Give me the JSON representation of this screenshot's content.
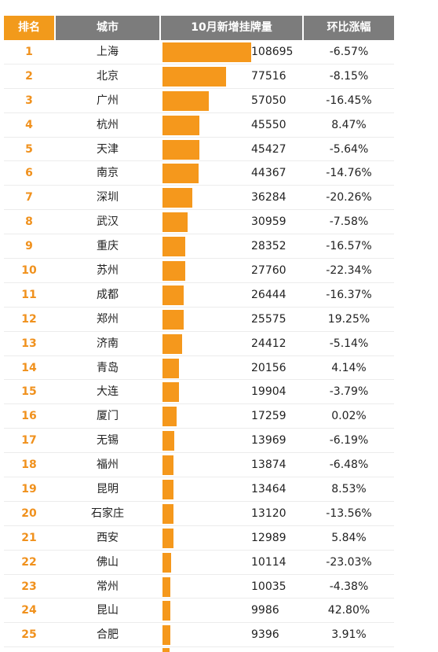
{
  "header": {
    "rank": "排名",
    "city": "城市",
    "count": "10月新增挂牌量",
    "change": "环比涨幅"
  },
  "colors": {
    "accent": "#f29a1b",
    "bar": "#f5981c",
    "header_gray": "#7c7c7c"
  },
  "chart_data": {
    "type": "table",
    "columns": [
      "排名",
      "城市",
      "10月新增挂牌量",
      "环比涨幅"
    ],
    "rows": [
      {
        "rank": "1",
        "city": "上海",
        "value": 108695,
        "value_label": "108695",
        "change": "-6.57%"
      },
      {
        "rank": "2",
        "city": "北京",
        "value": 77516,
        "value_label": "77516",
        "change": "-8.15%"
      },
      {
        "rank": "3",
        "city": "广州",
        "value": 57050,
        "value_label": "57050",
        "change": "-16.45%"
      },
      {
        "rank": "4",
        "city": "杭州",
        "value": 45550,
        "value_label": "45550",
        "change": "8.47%"
      },
      {
        "rank": "5",
        "city": "天津",
        "value": 45427,
        "value_label": "45427",
        "change": "-5.64%"
      },
      {
        "rank": "6",
        "city": "南京",
        "value": 44367,
        "value_label": "44367",
        "change": "-14.76%"
      },
      {
        "rank": "7",
        "city": "深圳",
        "value": 36284,
        "value_label": "36284",
        "change": "-20.26%"
      },
      {
        "rank": "8",
        "city": "武汉",
        "value": 30959,
        "value_label": "30959",
        "change": "-7.58%"
      },
      {
        "rank": "9",
        "city": "重庆",
        "value": 28352,
        "value_label": "28352",
        "change": "-16.57%"
      },
      {
        "rank": "10",
        "city": "苏州",
        "value": 27760,
        "value_label": "27760",
        "change": "-22.34%"
      },
      {
        "rank": "11",
        "city": "成都",
        "value": 26444,
        "value_label": "26444",
        "change": "-16.37%"
      },
      {
        "rank": "12",
        "city": "郑州",
        "value": 25575,
        "value_label": "25575",
        "change": "19.25%"
      },
      {
        "rank": "13",
        "city": "济南",
        "value": 24412,
        "value_label": "24412",
        "change": "-5.14%"
      },
      {
        "rank": "14",
        "city": "青岛",
        "value": 20156,
        "value_label": "20156",
        "change": "4.14%"
      },
      {
        "rank": "15",
        "city": "大连",
        "value": 19904,
        "value_label": "19904",
        "change": "-3.79%"
      },
      {
        "rank": "16",
        "city": "厦门",
        "value": 17259,
        "value_label": "17259",
        "change": "0.02%"
      },
      {
        "rank": "17",
        "city": "无锡",
        "value": 13969,
        "value_label": "13969",
        "change": "-6.19%"
      },
      {
        "rank": "18",
        "city": "福州",
        "value": 13874,
        "value_label": "13874",
        "change": "-6.48%"
      },
      {
        "rank": "19",
        "city": "昆明",
        "value": 13464,
        "value_label": "13464",
        "change": "8.53%"
      },
      {
        "rank": "20",
        "city": "石家庄",
        "value": 13120,
        "value_label": "13120",
        "change": "-13.56%"
      },
      {
        "rank": "21",
        "city": "西安",
        "value": 12989,
        "value_label": "12989",
        "change": "5.84%"
      },
      {
        "rank": "22",
        "city": "佛山",
        "value": 10114,
        "value_label": "10114",
        "change": "-23.03%"
      },
      {
        "rank": "23",
        "city": "常州",
        "value": 10035,
        "value_label": "10035",
        "change": "-4.38%"
      },
      {
        "rank": "24",
        "city": "昆山",
        "value": 9986,
        "value_label": "9986",
        "change": "42.80%"
      },
      {
        "rank": "25",
        "city": "合肥",
        "value": 9396,
        "value_label": "9396",
        "change": "3.91%"
      }
    ]
  }
}
